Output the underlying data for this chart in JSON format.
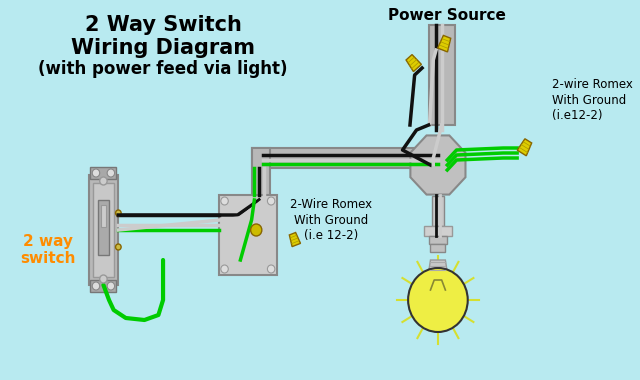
{
  "bg_color": "#b8eaf0",
  "title_lines": [
    "2 Way Switch",
    "Wiring Diagram",
    "(with power feed via light)"
  ],
  "title_color": "#000000",
  "title_fontsize": 14,
  "orange_label": "2 way\nswitch",
  "orange_color": "#ff8c00",
  "label1": "2-Wire Romex\nWith Ground\n(i.e 12-2)",
  "label2": "2-wire Romex\nWith Ground\n(i.e12-2)",
  "power_source_label": "Power Source",
  "wire_green": "#00cc00",
  "wire_black": "#111111",
  "wire_white": "#cccccc",
  "connector_color": "#ccbb00",
  "light_yellow": "#eeee44",
  "gray_conduit": "#aaaaaa",
  "gray_box": "#b8b8b8"
}
